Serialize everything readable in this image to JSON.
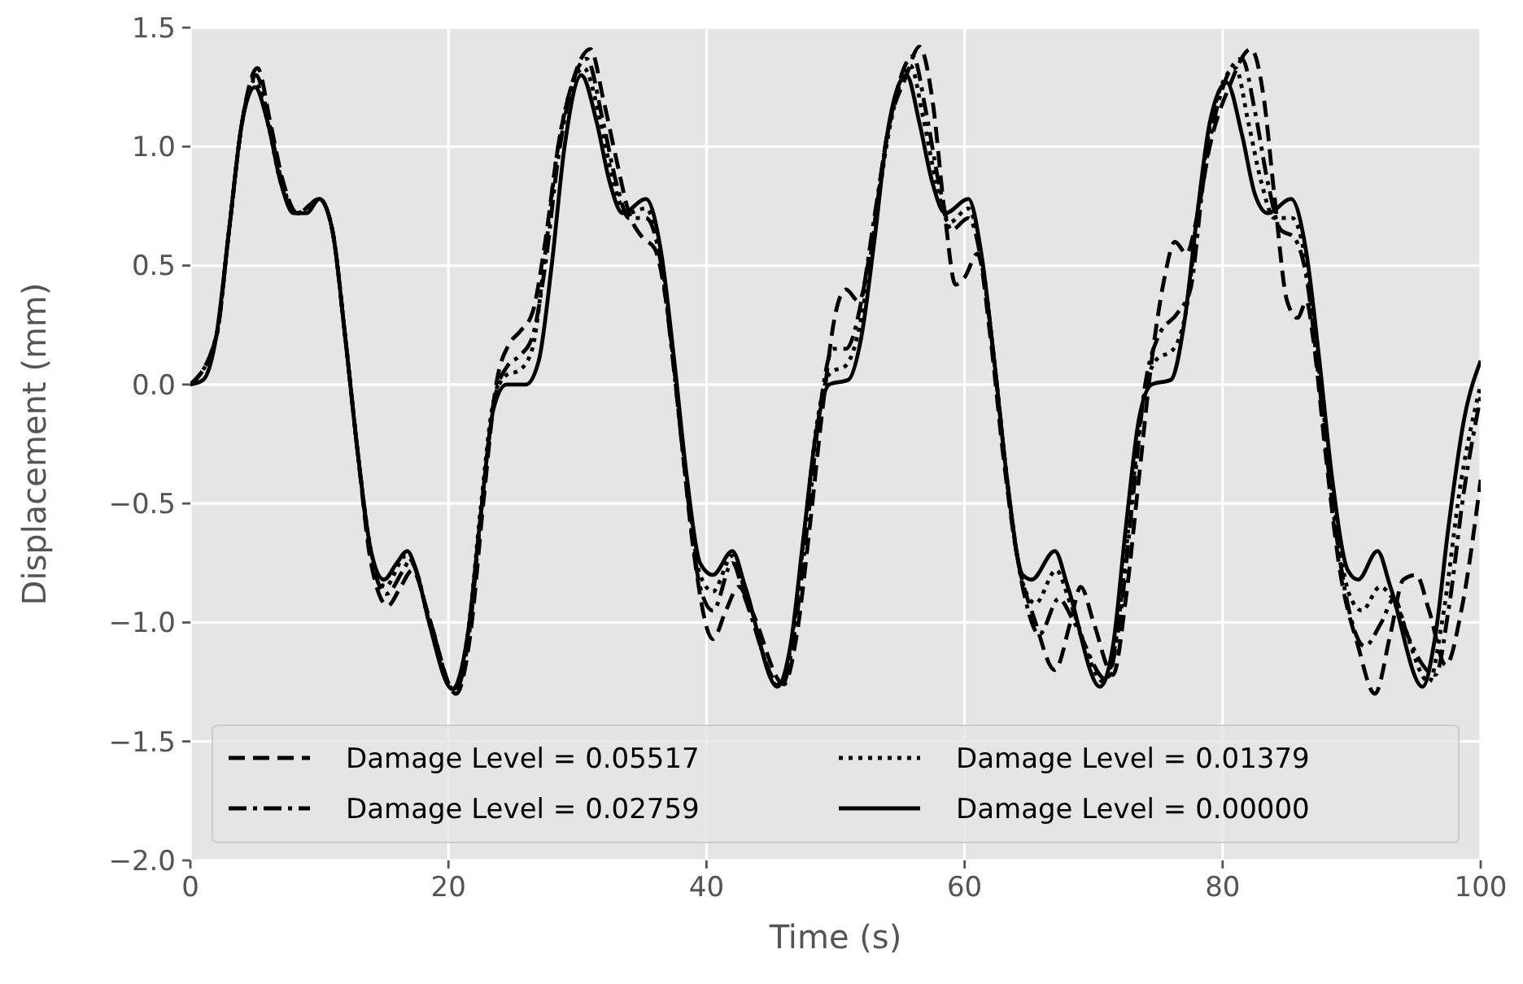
{
  "chart_data": {
    "type": "line",
    "xlabel": "Time (s)",
    "ylabel": "Displacement (mm)",
    "xlim": [
      0,
      100
    ],
    "xticks": [
      0,
      20,
      40,
      60,
      80,
      100
    ],
    "ylim": [
      -2.0,
      1.5
    ],
    "yticks": [
      {
        "value": -2.0,
        "label": "−2.0"
      },
      {
        "value": -1.5,
        "label": "−1.5"
      },
      {
        "value": -1.0,
        "label": "−1.0"
      },
      {
        "value": -0.5,
        "label": "−0.5"
      },
      {
        "value": 0.0,
        "label": "0.0"
      },
      {
        "value": 0.5,
        "label": "0.5"
      },
      {
        "value": 1.0,
        "label": "1.0"
      },
      {
        "value": 1.5,
        "label": "1.5"
      }
    ],
    "grid": true,
    "legend": "bottom",
    "series": [
      {
        "name": "Damage Level = 0.05517",
        "color": "#000000",
        "line_style": "dashed",
        "x": [
          0,
          2,
          3,
          4,
          5.2,
          6.2,
          7.2,
          8.3,
          10,
          11,
          12,
          13,
          14,
          15.3,
          16.3,
          17.2,
          18.5,
          20.6,
          21.7,
          22.7,
          23.7,
          24.7,
          25.5,
          26.5,
          27.5,
          28.5,
          29.5,
          31,
          32,
          33,
          34,
          35,
          36,
          37,
          38,
          39,
          40.5,
          41.5,
          42.5,
          43.5,
          46,
          47,
          48,
          49,
          50,
          50.8,
          51.8,
          52.8,
          54,
          55.5,
          56.5,
          57.5,
          58.5,
          59.3,
          60,
          61,
          62,
          63,
          64,
          65.5,
          67,
          68.2,
          69,
          70,
          71.5,
          72.5,
          73.5,
          74.5,
          75.5,
          76.3,
          77.2,
          78,
          79,
          80.5,
          82.2,
          83.2,
          84,
          85,
          85.8,
          86.5,
          87,
          88,
          89,
          90.5,
          91.8,
          93,
          94,
          95,
          96,
          97.3,
          98.5,
          100
        ],
        "values": [
          0,
          0.2,
          0.65,
          1.1,
          1.33,
          1.1,
          0.85,
          0.72,
          0.78,
          0.65,
          0.2,
          -0.3,
          -0.75,
          -0.93,
          -0.85,
          -0.78,
          -0.98,
          -1.3,
          -1.05,
          -0.5,
          0.0,
          0.17,
          0.22,
          0.3,
          0.6,
          1.0,
          1.25,
          1.41,
          1.2,
          0.95,
          0.72,
          0.62,
          0.57,
          0.3,
          -0.2,
          -0.7,
          -1.07,
          -0.95,
          -0.85,
          -0.95,
          -1.26,
          -1.05,
          -0.6,
          -0.1,
          0.3,
          0.4,
          0.35,
          0.6,
          1.05,
          1.3,
          1.42,
          1.2,
          0.7,
          0.42,
          0.45,
          0.55,
          0.2,
          -0.3,
          -0.7,
          -1.0,
          -1.2,
          -1.0,
          -0.85,
          -1.0,
          -1.22,
          -0.9,
          -0.4,
          0.1,
          0.45,
          0.6,
          0.55,
          0.7,
          1.0,
          1.25,
          1.41,
          1.2,
          0.8,
          0.35,
          0.28,
          0.35,
          0.2,
          -0.3,
          -0.75,
          -1.1,
          -1.3,
          -1.05,
          -0.82,
          -0.8,
          -0.95,
          -1.18,
          -0.95,
          -0.4
        ]
      },
      {
        "name": "Damage Level = 0.02759",
        "color": "#000000",
        "line_style": "dashdot",
        "x": [
          0,
          2,
          3,
          4,
          5.1,
          6.1,
          7.1,
          8.3,
          10,
          11,
          12,
          13,
          14,
          15.2,
          16.5,
          17,
          18.5,
          20.5,
          21.6,
          22.6,
          23.6,
          24.6,
          25.5,
          26.5,
          27.5,
          28.5,
          30.7,
          32,
          33,
          34,
          35.3,
          36.5,
          37.5,
          38.5,
          39.5,
          40.5,
          42,
          43,
          45.8,
          46.8,
          47.8,
          48.8,
          49.8,
          50.8,
          52,
          53,
          54.2,
          56,
          57,
          58,
          59,
          60.3,
          61.5,
          62.5,
          63.5,
          64.7,
          65.8,
          67.3,
          68.5,
          71,
          72,
          73,
          74,
          75,
          76.5,
          77.5,
          78.5,
          79.5,
          81.5,
          82.5,
          83.5,
          84.5,
          85.5,
          86.5,
          87.5,
          88.5,
          89.8,
          91,
          92.3,
          93.3,
          94.3,
          96.5,
          97.5,
          98.7,
          100
        ],
        "values": [
          0,
          0.2,
          0.65,
          1.1,
          1.3,
          1.1,
          0.85,
          0.72,
          0.78,
          0.65,
          0.2,
          -0.3,
          -0.72,
          -0.88,
          -0.78,
          -0.74,
          -0.98,
          -1.29,
          -1.05,
          -0.5,
          -0.05,
          0.08,
          0.12,
          0.2,
          0.5,
          0.95,
          1.37,
          1.1,
          0.85,
          0.7,
          0.7,
          0.5,
          0.05,
          -0.45,
          -0.85,
          -0.95,
          -0.75,
          -0.9,
          -1.27,
          -1.05,
          -0.6,
          -0.1,
          0.15,
          0.15,
          0.35,
          0.7,
          1.1,
          1.38,
          1.15,
          0.85,
          0.65,
          0.7,
          0.45,
          0.0,
          -0.5,
          -0.9,
          -1.05,
          -0.9,
          -1.0,
          -1.24,
          -1.0,
          -0.5,
          0.0,
          0.2,
          0.3,
          0.4,
          0.85,
          1.15,
          1.37,
          1.15,
          0.85,
          0.65,
          0.62,
          0.45,
          0.0,
          -0.5,
          -0.95,
          -1.1,
          -1.0,
          -0.9,
          -1.05,
          -1.22,
          -0.95,
          -0.45,
          -0.05
        ]
      },
      {
        "name": "Damage Level = 0.01379",
        "color": "#000000",
        "line_style": "dotted",
        "x": [
          0,
          2,
          3,
          4,
          5,
          6,
          7,
          8.3,
          10,
          11,
          12,
          13,
          14,
          15.1,
          16.7,
          17.5,
          18.5,
          20.4,
          21.5,
          22.5,
          23.5,
          24.5,
          25.5,
          26.5,
          27.5,
          28.5,
          30.5,
          31.8,
          32.8,
          33.8,
          35.3,
          36.5,
          37.5,
          38.5,
          39.5,
          40.5,
          42,
          43,
          45.6,
          46.6,
          47.6,
          48.6,
          49.6,
          50.8,
          52,
          53,
          54.2,
          55.8,
          56.8,
          57.8,
          58.8,
          60.3,
          61.4,
          62.4,
          63.4,
          64.6,
          65.5,
          67.1,
          68.2,
          70.8,
          71.8,
          72.8,
          73.8,
          74.8,
          76.2,
          77.2,
          78.2,
          79.2,
          81,
          82,
          83,
          84,
          85.4,
          86.5,
          87.5,
          88.5,
          89.8,
          90.8,
          92.2,
          93.2,
          96,
          97,
          98.5,
          100
        ],
        "values": [
          0,
          0.2,
          0.65,
          1.1,
          1.28,
          1.1,
          0.85,
          0.72,
          0.78,
          0.65,
          0.2,
          -0.3,
          -0.7,
          -0.85,
          -0.72,
          -0.78,
          -1.0,
          -1.28,
          -1.05,
          -0.52,
          -0.07,
          0.04,
          0.06,
          0.15,
          0.55,
          1.0,
          1.33,
          1.1,
          0.85,
          0.72,
          0.74,
          0.52,
          0.07,
          -0.42,
          -0.8,
          -0.87,
          -0.72,
          -0.87,
          -1.27,
          -1.08,
          -0.62,
          -0.15,
          0.05,
          0.08,
          0.28,
          0.65,
          1.08,
          1.34,
          1.12,
          0.85,
          0.68,
          0.74,
          0.5,
          0.05,
          -0.45,
          -0.85,
          -0.92,
          -0.78,
          -0.92,
          -1.25,
          -1.05,
          -0.55,
          -0.08,
          0.1,
          0.15,
          0.32,
          0.78,
          1.13,
          1.33,
          1.1,
          0.85,
          0.7,
          0.7,
          0.5,
          0.05,
          -0.45,
          -0.88,
          -0.95,
          -0.85,
          -0.9,
          -1.25,
          -1.0,
          -0.4,
          0.0
        ]
      },
      {
        "name": "Damage Level = 0.00000",
        "color": "#000000",
        "line_style": "solid",
        "x": [
          0,
          1,
          2,
          3,
          4,
          5,
          6,
          7,
          8,
          9,
          10,
          11,
          12,
          13,
          14,
          15,
          16,
          16.8,
          17.5,
          18.5,
          20.3,
          21.5,
          22.5,
          23.5,
          24.5,
          26,
          27,
          28,
          29,
          30.3,
          31.5,
          32.5,
          33.5,
          35.3,
          36.5,
          37.5,
          38.5,
          39.5,
          40.5,
          42,
          43,
          45.5,
          46.5,
          47.5,
          48.5,
          49.5,
          51,
          52,
          53,
          54,
          55.5,
          56.5,
          57.5,
          58.5,
          60.3,
          61.3,
          62.3,
          63.3,
          64.5,
          65.2,
          67,
          68,
          70.5,
          71.5,
          72.5,
          73.5,
          74.5,
          76,
          77,
          78,
          79,
          80.3,
          81.5,
          82.5,
          83.5,
          85.3,
          86.5,
          87.5,
          88.5,
          89.7,
          90.5,
          92,
          93,
          95.5,
          96.5,
          97.5,
          98.7,
          100
        ],
        "values": [
          0,
          0.02,
          0.2,
          0.65,
          1.1,
          1.25,
          1.1,
          0.85,
          0.72,
          0.72,
          0.78,
          0.65,
          0.2,
          -0.3,
          -0.7,
          -0.82,
          -0.75,
          -0.7,
          -0.78,
          -1.0,
          -1.28,
          -1.05,
          -0.55,
          -0.1,
          0.0,
          0.0,
          0.1,
          0.5,
          1.0,
          1.3,
          1.1,
          0.85,
          0.72,
          0.78,
          0.55,
          0.1,
          -0.4,
          -0.75,
          -0.8,
          -0.7,
          -0.85,
          -1.27,
          -1.1,
          -0.65,
          -0.2,
          0.0,
          0.02,
          0.2,
          0.6,
          1.05,
          1.3,
          1.1,
          0.85,
          0.72,
          0.78,
          0.55,
          0.1,
          -0.4,
          -0.8,
          -0.82,
          -0.7,
          -0.85,
          -1.27,
          -1.1,
          -0.6,
          -0.15,
          0.0,
          0.02,
          0.25,
          0.7,
          1.1,
          1.27,
          1.05,
          0.8,
          0.72,
          0.78,
          0.55,
          0.1,
          -0.4,
          -0.78,
          -0.82,
          -0.7,
          -0.85,
          -1.27,
          -1.05,
          -0.6,
          -0.15,
          0.1
        ]
      }
    ]
  }
}
